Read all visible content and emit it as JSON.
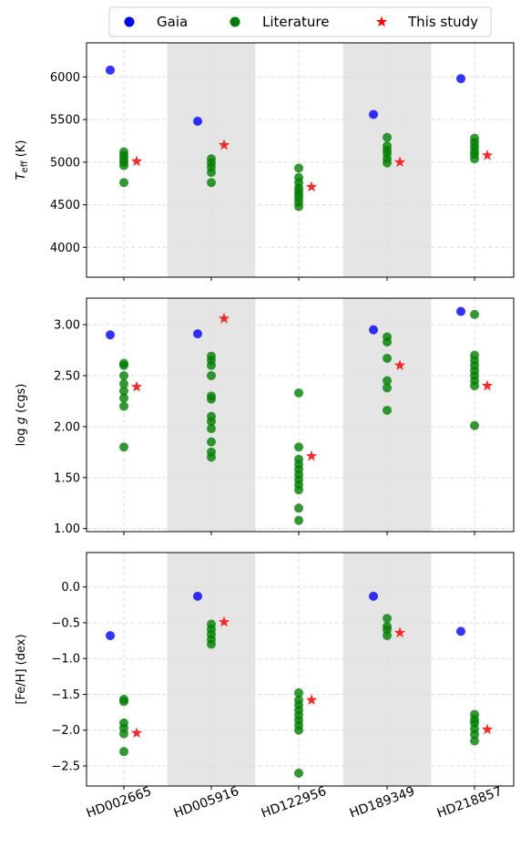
{
  "legend": [
    {
      "label": "Gaia",
      "color": "#0000ff",
      "marker": "circle"
    },
    {
      "label": "Literature",
      "color": "#008000",
      "marker": "circle"
    },
    {
      "label": "This study",
      "color": "#ff0000",
      "marker": "star"
    }
  ],
  "colors": {
    "gaia": "#0000ff",
    "literature": "#008000",
    "this_study": "#ff0000",
    "shade": "#e5e5e5",
    "grid": "#dddddd"
  },
  "chart_data": [
    {
      "type": "scatter",
      "ylabel_main": "T",
      "ylabel_sub": "eff",
      "ylabel_unit": " (K)",
      "categories": [
        "HD002665",
        "HD005916",
        "HD122956",
        "HD189349",
        "HD218857"
      ],
      "ylim": [
        3650,
        6400
      ],
      "yticks": [
        4000,
        4500,
        5000,
        5500,
        6000
      ],
      "ytick_labels": [
        "4000",
        "4500",
        "5000",
        "5500",
        "6000"
      ],
      "shaded_categories": [
        1,
        3
      ],
      "grid": true,
      "series": [
        {
          "name": "Gaia",
          "values": [
            [
              6080
            ],
            [
              5480
            ],
            [],
            [
              5560
            ],
            [
              5980
            ]
          ]
        },
        {
          "name": "Literature",
          "values": [
            [
              4760,
              4960,
              5000,
              5040,
              5080,
              5120
            ],
            [
              4760,
              4880,
              4940,
              4990,
              5040
            ],
            [
              4480,
              4530,
              4580,
              4620,
              4660,
              4700,
              4760,
              4820,
              4930
            ],
            [
              4990,
              5040,
              5100,
              5140,
              5190,
              5290
            ],
            [
              5040,
              5090,
              5130,
              5180,
              5230,
              5280
            ]
          ]
        },
        {
          "name": "This study",
          "values": [
            [
              5010
            ],
            [
              5200
            ],
            [
              4710
            ],
            [
              5000
            ],
            [
              5080
            ]
          ]
        }
      ]
    },
    {
      "type": "scatter",
      "ylabel_main": "log",
      "ylabel_italic": "g",
      "ylabel_unit": " (cgs)",
      "categories": [
        "HD002665",
        "HD005916",
        "HD122956",
        "HD189349",
        "HD218857"
      ],
      "ylim": [
        0.97,
        3.26
      ],
      "yticks": [
        1.0,
        1.5,
        2.0,
        2.5,
        3.0
      ],
      "ytick_labels": [
        "1.00",
        "1.50",
        "2.00",
        "2.50",
        "3.00"
      ],
      "shaded_categories": [
        1,
        3
      ],
      "grid": true,
      "series": [
        {
          "name": "Gaia",
          "values": [
            [
              2.9
            ],
            [
              2.91
            ],
            [],
            [
              2.95
            ],
            [
              3.13
            ]
          ]
        },
        {
          "name": "Literature",
          "values": [
            [
              1.8,
              2.2,
              2.28,
              2.35,
              2.42,
              2.5,
              2.6,
              2.62
            ],
            [
              1.7,
              1.75,
              1.85,
              1.98,
              2.05,
              2.1,
              2.27,
              2.3,
              2.5,
              2.6,
              2.65,
              2.69
            ],
            [
              1.08,
              1.2,
              1.38,
              1.43,
              1.48,
              1.53,
              1.58,
              1.63,
              1.68,
              1.8,
              2.33
            ],
            [
              2.16,
              2.38,
              2.45,
              2.67,
              2.83,
              2.88
            ],
            [
              2.01,
              2.4,
              2.45,
              2.5,
              2.55,
              2.6,
              2.65,
              2.7,
              3.1
            ]
          ]
        },
        {
          "name": "This study",
          "values": [
            [
              2.39
            ],
            [
              3.06
            ],
            [
              1.71
            ],
            [
              2.6
            ],
            [
              2.4
            ]
          ]
        }
      ]
    },
    {
      "type": "scatter",
      "ylabel_main": "[Fe/H] (dex)",
      "categories": [
        "HD002665",
        "HD005916",
        "HD122956",
        "HD189349",
        "HD218857"
      ],
      "ylim": [
        -2.78,
        0.48
      ],
      "yticks": [
        -2.5,
        -2.0,
        -1.5,
        -1.0,
        -0.5,
        0.0
      ],
      "ytick_labels": [
        "−2.5",
        "−2.0",
        "−1.5",
        "−1.0",
        "−0.5",
        "0.0"
      ],
      "shaded_categories": [
        1,
        3
      ],
      "grid": true,
      "series": [
        {
          "name": "Gaia",
          "values": [
            [
              -0.68
            ],
            [
              -0.13
            ],
            [],
            [
              -0.13
            ],
            [
              -0.62
            ]
          ]
        },
        {
          "name": "Literature",
          "values": [
            [
              -2.3,
              -2.05,
              -1.97,
              -1.9,
              -1.6,
              -1.57
            ],
            [
              -0.8,
              -0.73,
              -0.66,
              -0.59,
              -0.52
            ],
            [
              -2.6,
              -2.0,
              -1.93,
              -1.86,
              -1.79,
              -1.72,
              -1.65,
              -1.58,
              -1.48
            ],
            [
              -0.68,
              -0.6,
              -0.55,
              -0.44
            ],
            [
              -2.15,
              -2.06,
              -1.98,
              -1.9,
              -1.85,
              -1.78
            ]
          ]
        },
        {
          "name": "This study",
          "values": [
            [
              -2.04
            ],
            [
              -0.49
            ],
            [
              -1.58
            ],
            [
              -0.64
            ],
            [
              -1.99
            ]
          ]
        }
      ]
    }
  ]
}
